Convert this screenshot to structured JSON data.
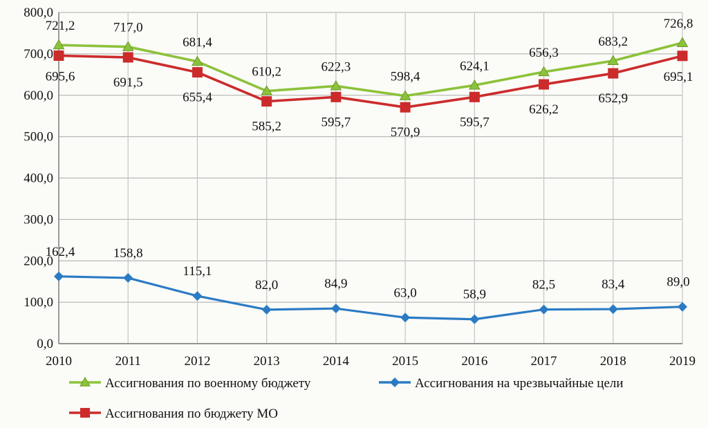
{
  "chart_data": {
    "type": "line",
    "title": "",
    "xlabel": "",
    "ylabel": "",
    "categories": [
      "2010",
      "2011",
      "2012",
      "2013",
      "2014",
      "2015",
      "2016",
      "2017",
      "2018",
      "2019"
    ],
    "ylim": [
      0,
      800
    ],
    "yticks": [
      "0,0",
      "100,0",
      "200,0",
      "300,0",
      "400,0",
      "500,0",
      "600,0",
      "700,0",
      "800,0"
    ],
    "grid": "horizontal and vertical",
    "legend_position": "bottom",
    "series": [
      {
        "name": "Ассигнования по военному бюджету",
        "color": "#8cc23a",
        "marker": "triangle",
        "values": [
          721.2,
          717.0,
          681.4,
          610.2,
          622.3,
          598.4,
          624.1,
          656.3,
          683.2,
          726.8
        ],
        "labels": [
          "721,2",
          "717,0",
          "681,4",
          "610,2",
          "622,3",
          "598,4",
          "624,1",
          "656,3",
          "683,2",
          "726,8"
        ]
      },
      {
        "name": "Ассигнования по бюджету МО",
        "color": "#cc2b2b",
        "marker": "square",
        "values": [
          695.6,
          691.5,
          655.4,
          585.2,
          595.7,
          570.9,
          595.7,
          626.2,
          652.9,
          695.1
        ],
        "labels": [
          "695,6",
          "691,5",
          "655,4",
          "585,2",
          "595,7",
          "570,9",
          "595,7",
          "626,2",
          "652,9",
          "695,1"
        ]
      },
      {
        "name": "Ассигнования на чрезвычайные цели",
        "color": "#2b7bc4",
        "marker": "diamond",
        "values": [
          162.4,
          158.8,
          115.1,
          82.0,
          84.9,
          63.0,
          58.9,
          82.5,
          83.4,
          89.0
        ],
        "labels": [
          "162,4",
          "158,8",
          "115,1",
          "82,0",
          "84,9",
          "63,0",
          "58,9",
          "82,5",
          "83,4",
          "89,0"
        ]
      }
    ]
  }
}
